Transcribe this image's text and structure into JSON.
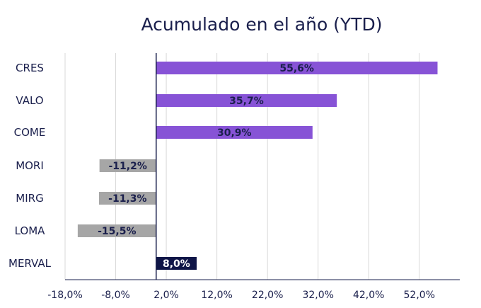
{
  "chart_data": {
    "type": "bar",
    "orientation": "horizontal",
    "title": "Acumulado en el año (YTD)",
    "categories": [
      "CRES",
      "VALO",
      "COME",
      "MORI",
      "MIRG",
      "LOMA",
      "MERVAL"
    ],
    "values": [
      55.6,
      35.7,
      30.9,
      -11.2,
      -11.3,
      -15.5,
      8.0
    ],
    "data_labels": [
      "55,6%",
      "35,7%",
      "30,9%",
      "-11,2%",
      "-11,3%",
      "-15,5%",
      "8,0%"
    ],
    "x_ticks": [
      -18.0,
      -8.0,
      2.0,
      12.0,
      22.0,
      32.0,
      42.0,
      52.0
    ],
    "x_tick_labels": [
      "-18,0%",
      "-8,0%",
      "2,0%",
      "12,0%",
      "22,0%",
      "32,0%",
      "42,0%",
      "52,0%"
    ],
    "xlim": [
      -18.0,
      60.0
    ],
    "grid": "vertical",
    "legend": "none",
    "colors": {
      "positive": "#8753d6",
      "negative": "#a6a6a6",
      "benchmark": "#0f1547",
      "label_dark": "#1a1f4c",
      "label_light": "#ffffff",
      "gridline": "#d9d9d9",
      "axis": "#1a1f4c"
    },
    "bar_colors": [
      "positive",
      "positive",
      "positive",
      "negative",
      "negative",
      "negative",
      "benchmark"
    ]
  }
}
